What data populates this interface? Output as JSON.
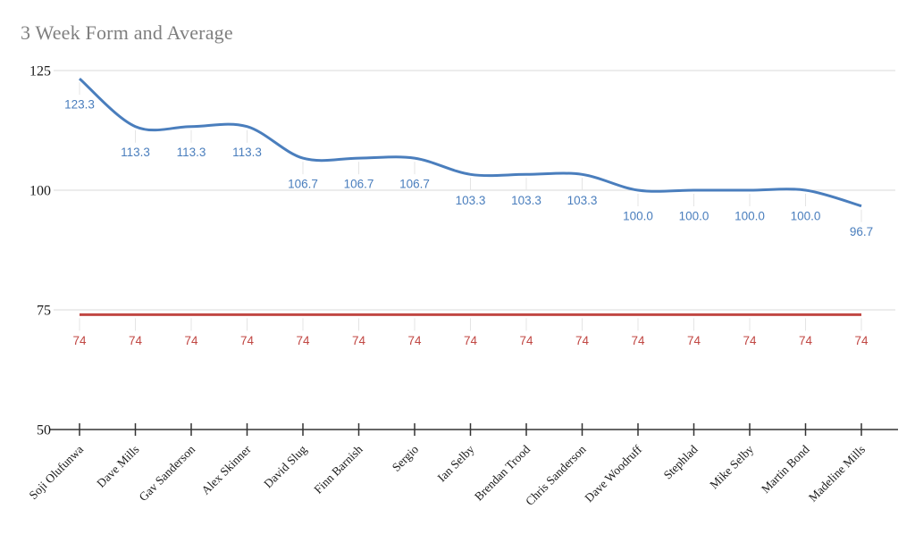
{
  "title": "3 Week Form and Average",
  "chart_data": {
    "type": "line",
    "title": "3 Week Form and Average",
    "smooth": true,
    "grid": true,
    "legend_position": "none",
    "data_labels": true,
    "categories": [
      "Soji Olufunwa",
      "Dave Mills",
      "Gav Sanderson",
      "Alex Skinner",
      "David Slug",
      "Finn Barnish",
      "Sergio",
      "Ian Selby",
      "Brendan Trood",
      "Chris Sanderson",
      "Dave Woodruff",
      "Stephlad",
      "Mike Selby",
      "Martin Bond",
      "Madeline Mills"
    ],
    "series": [
      {
        "values": [
          123.3,
          113.3,
          113.3,
          113.3,
          106.7,
          106.7,
          106.7,
          103.3,
          103.3,
          103.3,
          100.0,
          100.0,
          100.0,
          100.0,
          96.7
        ],
        "labels": [
          "123.3",
          "113.3",
          "113.3",
          "113.3",
          "106.7",
          "106.7",
          "106.7",
          "103.3",
          "103.3",
          "103.3",
          "100.0",
          "100.0",
          "100.0",
          "100.0",
          "96.7"
        ],
        "color": "#4a7ebd"
      },
      {
        "values": [
          74,
          74,
          74,
          74,
          74,
          74,
          74,
          74,
          74,
          74,
          74,
          74,
          74,
          74,
          74
        ],
        "labels": [
          "74",
          "74",
          "74",
          "74",
          "74",
          "74",
          "74",
          "74",
          "74",
          "74",
          "74",
          "74",
          "74",
          "74",
          "74"
        ],
        "color": "#c14743"
      }
    ],
    "y_axis": {
      "min": 50,
      "max": 125,
      "ticks": [
        {
          "label": "125",
          "value": 125
        },
        {
          "label": "100",
          "value": 100
        },
        {
          "label": "75",
          "value": 75
        },
        {
          "label": "50",
          "value": 50
        }
      ]
    },
    "colors": {
      "gridline": "#dadada",
      "axis": "#333333",
      "stub": "#e4e4e4",
      "tick_label": "#1a1a1a",
      "title": "#7f7f7f"
    }
  }
}
